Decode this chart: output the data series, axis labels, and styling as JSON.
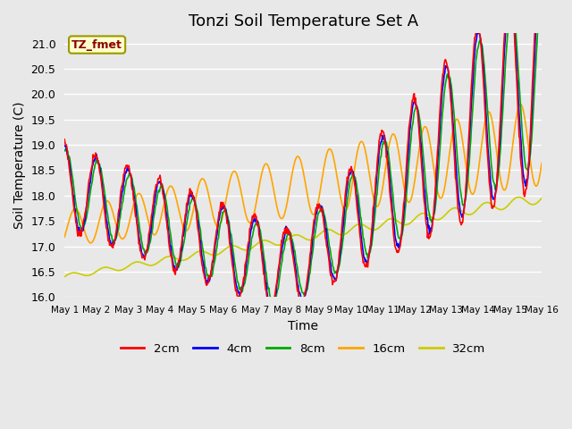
{
  "title": "Tonzi Soil Temperature Set A",
  "xlabel": "Time",
  "ylabel": "Soil Temperature (C)",
  "annotation": "TZ_fmet",
  "annotation_color": "#8B0000",
  "annotation_bg": "#FFFFCC",
  "ylim": [
    16.0,
    21.2
  ],
  "xlim": [
    0,
    15
  ],
  "x_tick_labels": [
    "May 1",
    "May 2",
    "May 3",
    "May 4",
    "May 5",
    "May 6",
    "May 7",
    "May 8",
    "May 9",
    "May 10",
    "May 11",
    "May 12",
    "May 13",
    "May 14",
    "May 15",
    "May 16"
  ],
  "line_colors": {
    "2cm": "#FF0000",
    "4cm": "#0000FF",
    "8cm": "#00AA00",
    "16cm": "#FFA500",
    "32cm": "#CCCC00"
  },
  "bg_color": "#E8E8E8",
  "grid_color": "#FFFFFF",
  "title_fontsize": 13,
  "axis_label_fontsize": 10
}
